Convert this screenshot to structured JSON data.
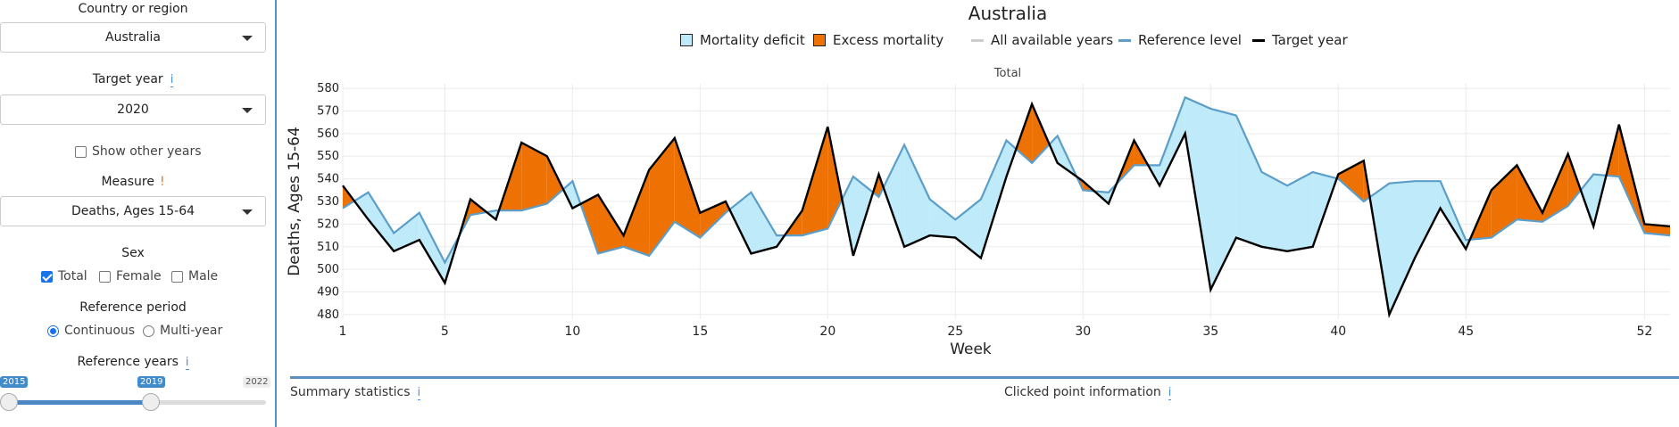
{
  "sidebar": {
    "country_label": "Country or region",
    "country_value": "Australia",
    "target_label": "Target year",
    "target_info": "i",
    "target_value": "2020",
    "show_other_years": "Show other years",
    "measure_label": "Measure",
    "measure_warn": "!",
    "measure_value": "Deaths, Ages 15-64",
    "sex_label": "Sex",
    "sex_options": [
      "Total",
      "Female",
      "Male"
    ],
    "sex_selected": "Total",
    "ref_period_label": "Reference period",
    "ref_period_options": [
      "Continuous",
      "Multi-year"
    ],
    "ref_period_selected": "Continuous",
    "ref_years_label": "Reference years",
    "ref_years_info": "i",
    "ref_years_min": "2015",
    "ref_years_value": "2019",
    "ref_years_max": "2022"
  },
  "legend": {
    "deficit": "Mortality deficit",
    "excess": "Excess mortality",
    "all_years": "All available years",
    "reference": "Reference level",
    "target": "Target year"
  },
  "footer": {
    "summary": "Summary statistics",
    "summary_info": "i",
    "clicked": "Clicked point information",
    "clicked_info": "i"
  },
  "colors": {
    "deficit": "#bfeafa",
    "excess": "#ee7203",
    "reference": "#5b9ec9",
    "target": "#000000",
    "all_years": "#cccccc"
  },
  "chart_data": {
    "type": "area",
    "title": "Australia",
    "subtitle": "Total",
    "xlabel": "Week",
    "ylabel": "Deaths, Ages 15-64",
    "xlim": [
      1,
      53
    ],
    "ylim": [
      478,
      582
    ],
    "x_ticks": [
      1,
      5,
      10,
      15,
      20,
      25,
      30,
      35,
      40,
      45,
      52
    ],
    "y_ticks": [
      480,
      490,
      500,
      510,
      520,
      530,
      540,
      550,
      560,
      570,
      580
    ],
    "grid": true,
    "legend_position": "top",
    "x": [
      1,
      2,
      3,
      4,
      5,
      6,
      7,
      8,
      9,
      10,
      11,
      12,
      13,
      14,
      15,
      16,
      17,
      18,
      19,
      20,
      21,
      22,
      23,
      24,
      25,
      26,
      27,
      28,
      29,
      30,
      31,
      32,
      33,
      34,
      35,
      36,
      37,
      38,
      39,
      40,
      41,
      42,
      43,
      44,
      45,
      46,
      47,
      48,
      49,
      50,
      51,
      52,
      53
    ],
    "series": [
      {
        "name": "Reference level",
        "values": [
          527,
          534,
          516,
          525,
          503,
          524,
          526,
          526,
          529,
          539,
          507,
          510,
          506,
          521,
          514,
          525,
          534,
          515,
          515,
          518,
          541,
          532,
          555,
          531,
          522,
          531,
          557,
          547,
          559,
          535,
          534,
          546,
          546,
          576,
          571,
          568,
          543,
          537,
          543,
          540,
          530,
          538,
          539,
          539,
          513,
          514,
          522,
          521,
          528,
          542,
          541,
          516,
          515
        ]
      },
      {
        "name": "Target year",
        "values": [
          537,
          522,
          508,
          513,
          494,
          531,
          522,
          556,
          550,
          527,
          533,
          515,
          544,
          558,
          525,
          530,
          507,
          510,
          526,
          563,
          506,
          542,
          510,
          515,
          514,
          505,
          541,
          573,
          547,
          539,
          529,
          557,
          537,
          560,
          491,
          514,
          510,
          508,
          510,
          542,
          548,
          480,
          505,
          527,
          509,
          535,
          546,
          525,
          551,
          519,
          564,
          520,
          519
        ]
      }
    ]
  }
}
